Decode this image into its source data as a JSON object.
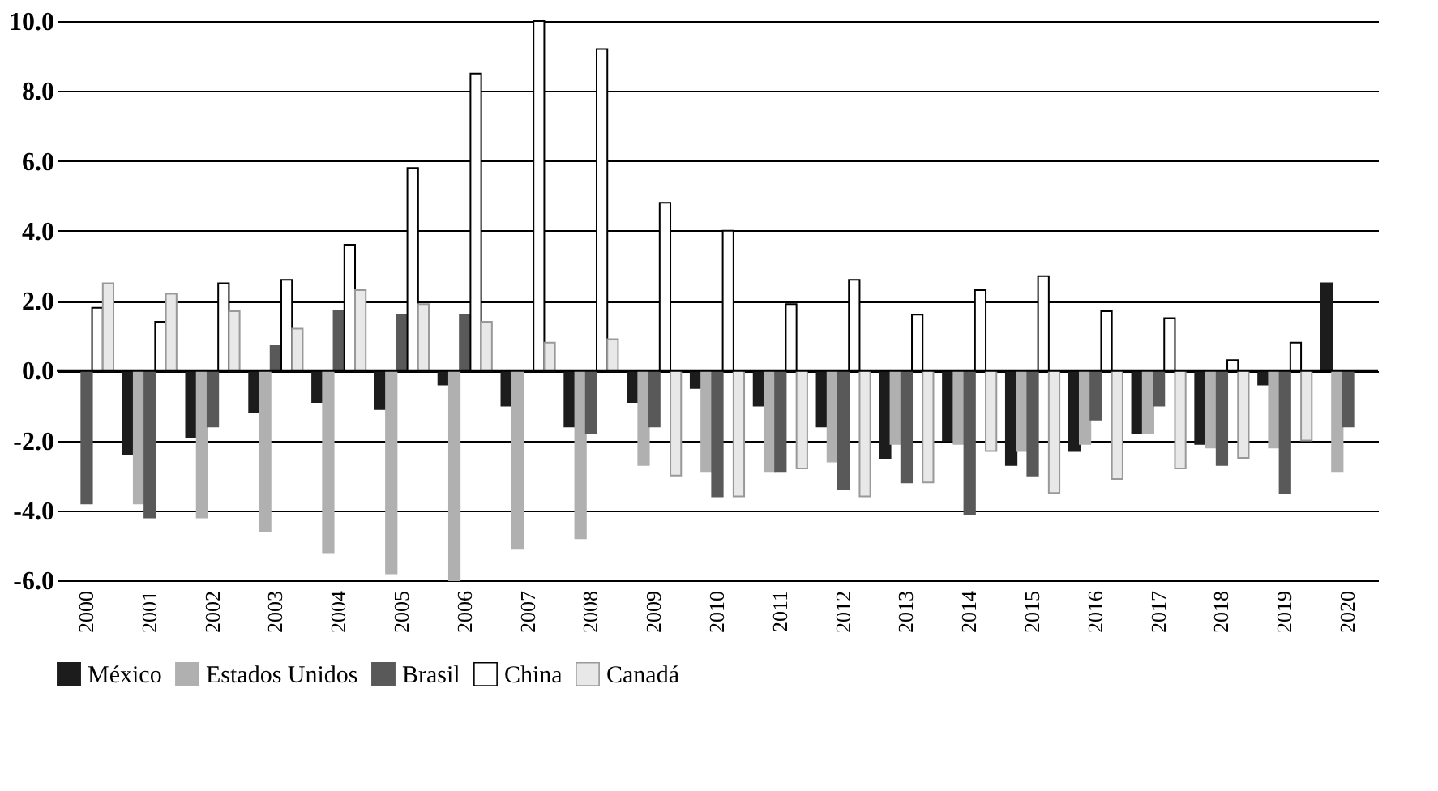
{
  "chart_data": {
    "type": "bar",
    "categories": [
      "2000",
      "2001",
      "2002",
      "2003",
      "2004",
      "2005",
      "2006",
      "2007",
      "2008",
      "2009",
      "2010",
      "2011",
      "2012",
      "2013",
      "2014",
      "2015",
      "2016",
      "2017",
      "2018",
      "2019",
      "2020"
    ],
    "series": [
      {
        "name": "México",
        "color": "#1c1c1c",
        "values": [
          null,
          -2.4,
          -1.9,
          -1.2,
          -0.9,
          -1.1,
          -0.4,
          -1.0,
          -1.6,
          -0.9,
          -0.5,
          -1.0,
          -1.6,
          -2.5,
          -2.0,
          -2.7,
          -2.3,
          -1.8,
          -2.1,
          -0.4,
          2.5
        ]
      },
      {
        "name": "Estados Unidos",
        "color": "#b0b0b0",
        "values": [
          null,
          -3.8,
          -4.2,
          -4.6,
          -5.2,
          -5.8,
          -6.0,
          -5.1,
          -4.8,
          -2.7,
          -2.9,
          -2.9,
          -2.6,
          -2.1,
          -2.1,
          -2.3,
          -2.1,
          -1.8,
          -2.2,
          -2.2,
          -2.9
        ]
      },
      {
        "name": "Brasil",
        "color": "#595959",
        "values": [
          -3.8,
          -4.2,
          -1.6,
          0.7,
          1.7,
          1.6,
          1.6,
          null,
          -1.8,
          -1.6,
          -3.6,
          -2.9,
          -3.4,
          -3.2,
          -4.1,
          -3.0,
          -1.4,
          -1.0,
          -2.7,
          -3.5,
          -1.6
        ]
      },
      {
        "name": "China",
        "color": "#ffffff",
        "values": [
          1.8,
          1.4,
          2.5,
          2.6,
          3.6,
          5.8,
          8.5,
          10.0,
          9.2,
          4.8,
          4.0,
          1.9,
          2.6,
          1.6,
          2.3,
          2.7,
          1.7,
          1.5,
          0.3,
          0.8,
          null
        ]
      },
      {
        "name": "Canadá",
        "color": "#e8e8e8",
        "values": [
          2.5,
          2.2,
          1.7,
          1.2,
          2.3,
          1.9,
          1.4,
          0.8,
          0.9,
          -3.0,
          -3.6,
          -2.8,
          -3.6,
          -3.2,
          -2.3,
          -3.5,
          -3.1,
          -2.8,
          -2.5,
          -2.0,
          null
        ]
      }
    ],
    "ylim": [
      -6,
      10
    ],
    "yticks": [
      {
        "value": -6,
        "label": "-6.0"
      },
      {
        "value": -4,
        "label": "-4.0"
      },
      {
        "value": -2,
        "label": "-2.0"
      },
      {
        "value": 0,
        "label": "0.0"
      },
      {
        "value": 2,
        "label": "2.0"
      },
      {
        "value": 4,
        "label": "4.0"
      },
      {
        "value": 6,
        "label": "6.0"
      },
      {
        "value": 8,
        "label": "8.0"
      },
      {
        "value": 10,
        "label": "10.0"
      }
    ],
    "grid": "y",
    "legend": "bottom"
  }
}
